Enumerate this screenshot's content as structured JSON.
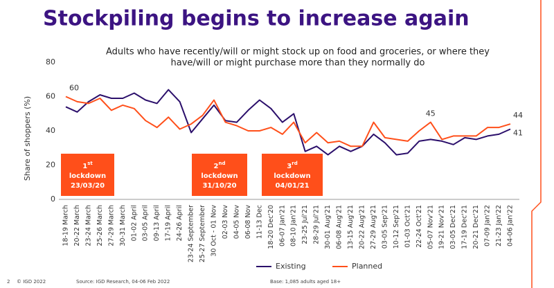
{
  "chart_data": {
    "type": "line",
    "title": "Stockpiling begins to increase again",
    "subtitle": [
      "Adults who have recently/will or might stock up on food and groceries, or where they",
      "have/will or might purchase more than they normally do"
    ],
    "y_label": "Share of shoppers (%)",
    "categories": [
      "18-19 March",
      "20-22 March",
      "23-24 March",
      "25-26 March",
      "27-29 March",
      "30-31 March",
      "01-02 April",
      "03-05 April",
      "09-13 April",
      "17-19 April",
      "24-26 April",
      "23-24 September",
      "25-27 September",
      "30 Oct - 01 Nov",
      "02-03 Nov",
      "04-05 Nov",
      "06-08 Nov",
      "11-13 Dec",
      "18-20 Dec'20",
      "06-07 Jan'21",
      "08-10 Jan'21",
      "23-25 Jul'21",
      "28-29 Jul'21",
      "30-01 Aug'21",
      "06-08 Aug'21",
      "13-15 Aug'21",
      "20-22 Aug'21",
      "27-29 Aug'21",
      "03-05 Sep'21",
      "10-12 Sep'21",
      "01-03 Oct'21",
      "22-24 Oct'21",
      "05-07 Nov'21",
      "19-21 Nov'21",
      "03-05 Dec'21",
      "17-19 Dec'21",
      "20-21 Dec'21",
      "07-09 Jan'22",
      "21-23 Jan'22",
      "04-06 Jan'22"
    ],
    "series": [
      {
        "name": "Existing",
        "color": "#2b0f6b",
        "values": [
          54,
          51,
          57,
          61,
          59,
          59,
          62,
          58,
          56,
          64,
          57,
          39,
          47,
          55,
          46,
          45,
          52,
          58,
          53,
          45,
          50,
          28,
          31,
          26,
          31,
          28,
          31,
          38,
          33,
          26,
          27,
          34,
          35,
          34,
          32,
          36,
          35,
          37,
          38,
          41
        ],
        "value_labels": [
          null,
          null,
          null,
          null,
          null,
          null,
          null,
          null,
          null,
          null,
          null,
          null,
          null,
          null,
          null,
          null,
          null,
          null,
          null,
          null,
          null,
          null,
          null,
          null,
          null,
          null,
          null,
          null,
          null,
          null,
          null,
          null,
          null,
          null,
          null,
          null,
          null,
          null,
          null,
          "41"
        ]
      },
      {
        "name": "Planned",
        "color": "#ff4f1a",
        "values": [
          60,
          57,
          56,
          59,
          52,
          55,
          53,
          46,
          42,
          48,
          41,
          44,
          49,
          58,
          45,
          43,
          40,
          40,
          42,
          38,
          45,
          33,
          39,
          33,
          34,
          31,
          31,
          45,
          36,
          35,
          34,
          40,
          45,
          35,
          37,
          37,
          37,
          42,
          42,
          44
        ],
        "value_labels": [
          "60",
          null,
          null,
          null,
          null,
          null,
          null,
          null,
          null,
          null,
          null,
          null,
          null,
          null,
          null,
          null,
          null,
          null,
          null,
          null,
          null,
          null,
          null,
          null,
          null,
          null,
          null,
          null,
          null,
          null,
          null,
          null,
          "45",
          null,
          null,
          null,
          null,
          null,
          null,
          "44"
        ]
      }
    ],
    "ylim": [
      0,
      80
    ],
    "yticks": [
      0,
      20,
      40,
      60,
      80
    ],
    "lockdowns": [
      {
        "number": "1",
        "suffix": "st",
        "label": "lockdown",
        "date": "23/03/20"
      },
      {
        "number": "2",
        "suffix": "nd",
        "label": "lockdown",
        "date": "31/10/20"
      },
      {
        "number": "3",
        "suffix": "rd",
        "label": "lockdown",
        "date": "04/01/21"
      }
    ],
    "footer": {
      "page": "2",
      "copyright": "© IGD 2022",
      "source": "Source: IGD Research, 04-06 Feb 2022",
      "base": "Base: 1,085 adults aged 18+"
    }
  }
}
